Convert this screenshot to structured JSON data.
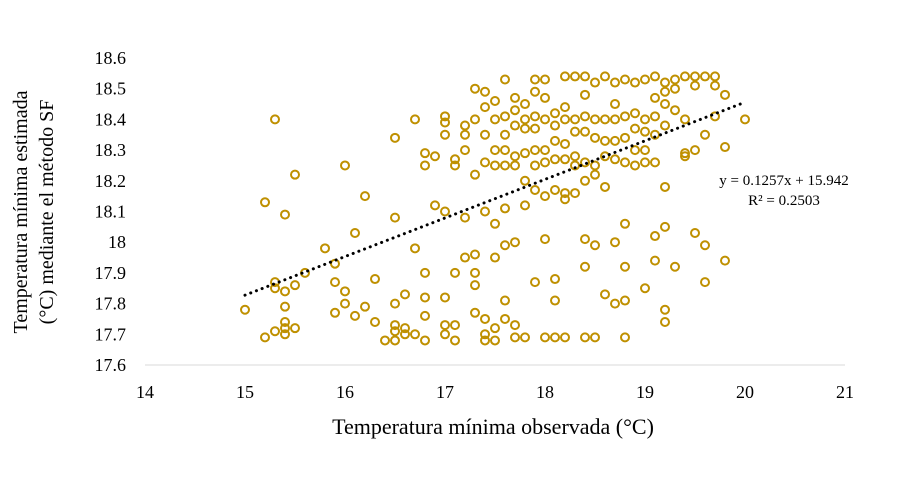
{
  "chart_data": {
    "type": "scatter",
    "title": "",
    "xlabel": "Temperatura mínima observada (°C)",
    "ylabel_lines": [
      "Temperatura mínima estimada",
      "(°C) mediante el método SF"
    ],
    "xlim": [
      14,
      21
    ],
    "ylim": [
      17.6,
      18.6
    ],
    "x_ticks": [
      "14",
      "15",
      "16",
      "17",
      "18",
      "19",
      "20",
      "21"
    ],
    "y_ticks": [
      "17.6",
      "17.7",
      "17.8",
      "17.9",
      "18",
      "18.1",
      "18.2",
      "18.3",
      "18.4",
      "18.5",
      "18.6"
    ],
    "grid": false,
    "marker_color": "#BF9000",
    "trendline": {
      "slope": 0.1257,
      "intercept": 15.942,
      "x_range": [
        15,
        20
      ],
      "style": "dotted",
      "color": "#000000"
    },
    "annotations": {
      "equation": "y = 0.1257x + 15.942",
      "r2": "R² = 0.2503"
    },
    "points": [
      [
        15.0,
        17.78
      ],
      [
        15.2,
        18.13
      ],
      [
        15.2,
        17.69
      ],
      [
        15.3,
        18.4
      ],
      [
        15.3,
        17.87
      ],
      [
        15.3,
        17.85
      ],
      [
        15.3,
        17.71
      ],
      [
        15.4,
        18.09
      ],
      [
        15.4,
        17.84
      ],
      [
        15.4,
        17.79
      ],
      [
        15.4,
        17.74
      ],
      [
        15.4,
        17.72
      ],
      [
        15.4,
        17.7
      ],
      [
        15.5,
        18.22
      ],
      [
        15.5,
        17.86
      ],
      [
        15.5,
        17.72
      ],
      [
        15.6,
        17.9
      ],
      [
        15.8,
        17.98
      ],
      [
        15.9,
        17.77
      ],
      [
        15.9,
        17.93
      ],
      [
        15.9,
        17.87
      ],
      [
        16.0,
        18.25
      ],
      [
        16.0,
        17.84
      ],
      [
        16.0,
        17.8
      ],
      [
        16.1,
        18.03
      ],
      [
        16.1,
        17.76
      ],
      [
        16.2,
        18.15
      ],
      [
        16.2,
        17.79
      ],
      [
        16.3,
        17.88
      ],
      [
        16.3,
        17.74
      ],
      [
        16.4,
        17.68
      ],
      [
        16.5,
        18.34
      ],
      [
        16.5,
        18.08
      ],
      [
        16.5,
        17.8
      ],
      [
        16.5,
        17.73
      ],
      [
        16.5,
        17.71
      ],
      [
        16.5,
        17.68
      ],
      [
        16.6,
        17.83
      ],
      [
        16.6,
        17.72
      ],
      [
        16.6,
        17.7
      ],
      [
        16.7,
        18.4
      ],
      [
        16.7,
        17.98
      ],
      [
        16.7,
        17.7
      ],
      [
        16.8,
        18.29
      ],
      [
        16.8,
        18.25
      ],
      [
        16.8,
        17.9
      ],
      [
        16.8,
        17.82
      ],
      [
        16.8,
        17.76
      ],
      [
        16.8,
        17.68
      ],
      [
        16.9,
        18.12
      ],
      [
        16.9,
        18.28
      ],
      [
        17.0,
        18.41
      ],
      [
        17.0,
        18.39
      ],
      [
        17.0,
        18.35
      ],
      [
        17.0,
        18.1
      ],
      [
        17.0,
        17.82
      ],
      [
        17.0,
        17.73
      ],
      [
        17.0,
        17.7
      ],
      [
        17.1,
        18.27
      ],
      [
        17.1,
        18.25
      ],
      [
        17.1,
        17.9
      ],
      [
        17.1,
        17.73
      ],
      [
        17.1,
        17.68
      ],
      [
        17.2,
        18.38
      ],
      [
        17.2,
        18.35
      ],
      [
        17.2,
        18.3
      ],
      [
        17.2,
        18.08
      ],
      [
        17.2,
        17.95
      ],
      [
        17.3,
        18.5
      ],
      [
        17.3,
        18.4
      ],
      [
        17.3,
        18.22
      ],
      [
        17.3,
        17.96
      ],
      [
        17.3,
        17.9
      ],
      [
        17.3,
        17.86
      ],
      [
        17.3,
        17.77
      ],
      [
        17.4,
        18.49
      ],
      [
        17.4,
        18.44
      ],
      [
        17.4,
        18.35
      ],
      [
        17.4,
        18.26
      ],
      [
        17.4,
        18.1
      ],
      [
        17.4,
        17.75
      ],
      [
        17.4,
        17.7
      ],
      [
        17.4,
        17.68
      ],
      [
        17.5,
        18.46
      ],
      [
        17.5,
        18.4
      ],
      [
        17.5,
        18.3
      ],
      [
        17.5,
        18.25
      ],
      [
        17.5,
        18.06
      ],
      [
        17.5,
        17.95
      ],
      [
        17.5,
        17.72
      ],
      [
        17.5,
        17.68
      ],
      [
        17.6,
        18.53
      ],
      [
        17.6,
        18.41
      ],
      [
        17.6,
        18.35
      ],
      [
        17.6,
        18.3
      ],
      [
        17.6,
        18.25
      ],
      [
        17.6,
        18.11
      ],
      [
        17.6,
        17.99
      ],
      [
        17.6,
        17.81
      ],
      [
        17.6,
        17.75
      ],
      [
        17.7,
        18.47
      ],
      [
        17.7,
        18.43
      ],
      [
        17.7,
        18.38
      ],
      [
        17.7,
        18.28
      ],
      [
        17.7,
        18.25
      ],
      [
        17.7,
        18.0
      ],
      [
        17.7,
        17.73
      ],
      [
        17.7,
        17.69
      ],
      [
        17.8,
        18.45
      ],
      [
        17.8,
        18.4
      ],
      [
        17.8,
        18.37
      ],
      [
        17.8,
        18.29
      ],
      [
        17.8,
        18.2
      ],
      [
        17.8,
        18.12
      ],
      [
        17.8,
        17.69
      ],
      [
        17.9,
        18.53
      ],
      [
        17.9,
        18.49
      ],
      [
        17.9,
        18.41
      ],
      [
        17.9,
        18.37
      ],
      [
        17.9,
        18.3
      ],
      [
        17.9,
        18.25
      ],
      [
        17.9,
        18.17
      ],
      [
        17.9,
        17.87
      ],
      [
        18.0,
        18.53
      ],
      [
        18.0,
        18.47
      ],
      [
        18.0,
        18.4
      ],
      [
        18.0,
        18.3
      ],
      [
        18.0,
        18.26
      ],
      [
        18.0,
        18.15
      ],
      [
        18.0,
        18.01
      ],
      [
        18.0,
        17.69
      ],
      [
        18.1,
        18.42
      ],
      [
        18.1,
        18.38
      ],
      [
        18.1,
        18.33
      ],
      [
        18.1,
        18.27
      ],
      [
        18.1,
        18.17
      ],
      [
        18.1,
        17.88
      ],
      [
        18.1,
        17.81
      ],
      [
        18.1,
        17.69
      ],
      [
        18.2,
        18.54
      ],
      [
        18.2,
        18.44
      ],
      [
        18.2,
        18.4
      ],
      [
        18.2,
        18.32
      ],
      [
        18.2,
        18.27
      ],
      [
        18.2,
        18.16
      ],
      [
        18.2,
        18.14
      ],
      [
        18.2,
        17.69
      ],
      [
        18.3,
        18.54
      ],
      [
        18.3,
        18.4
      ],
      [
        18.3,
        18.36
      ],
      [
        18.3,
        18.28
      ],
      [
        18.3,
        18.25
      ],
      [
        18.3,
        18.16
      ],
      [
        18.4,
        18.54
      ],
      [
        18.4,
        18.48
      ],
      [
        18.4,
        18.41
      ],
      [
        18.4,
        18.36
      ],
      [
        18.4,
        18.26
      ],
      [
        18.4,
        18.2
      ],
      [
        18.4,
        18.01
      ],
      [
        18.4,
        17.92
      ],
      [
        18.4,
        17.69
      ],
      [
        18.5,
        18.52
      ],
      [
        18.5,
        18.4
      ],
      [
        18.5,
        18.34
      ],
      [
        18.5,
        18.25
      ],
      [
        18.5,
        18.22
      ],
      [
        18.5,
        17.99
      ],
      [
        18.5,
        17.69
      ],
      [
        18.6,
        18.54
      ],
      [
        18.6,
        18.4
      ],
      [
        18.6,
        18.33
      ],
      [
        18.6,
        18.28
      ],
      [
        18.6,
        18.18
      ],
      [
        18.6,
        17.83
      ],
      [
        18.7,
        18.52
      ],
      [
        18.7,
        18.45
      ],
      [
        18.7,
        18.4
      ],
      [
        18.7,
        18.33
      ],
      [
        18.7,
        18.27
      ],
      [
        18.7,
        18.0
      ],
      [
        18.7,
        17.8
      ],
      [
        18.8,
        18.53
      ],
      [
        18.8,
        18.41
      ],
      [
        18.8,
        18.34
      ],
      [
        18.8,
        18.26
      ],
      [
        18.8,
        18.06
      ],
      [
        18.8,
        17.92
      ],
      [
        18.8,
        17.81
      ],
      [
        18.8,
        17.69
      ],
      [
        18.9,
        18.52
      ],
      [
        18.9,
        18.42
      ],
      [
        18.9,
        18.37
      ],
      [
        18.9,
        18.3
      ],
      [
        18.9,
        18.25
      ],
      [
        19.0,
        18.53
      ],
      [
        19.0,
        18.4
      ],
      [
        19.0,
        18.36
      ],
      [
        19.0,
        18.3
      ],
      [
        19.0,
        18.26
      ],
      [
        19.0,
        17.85
      ],
      [
        19.1,
        18.54
      ],
      [
        19.1,
        18.47
      ],
      [
        19.1,
        18.41
      ],
      [
        19.1,
        18.35
      ],
      [
        19.1,
        18.26
      ],
      [
        19.1,
        18.02
      ],
      [
        19.1,
        17.94
      ],
      [
        19.2,
        18.52
      ],
      [
        19.2,
        18.49
      ],
      [
        19.2,
        18.45
      ],
      [
        19.2,
        18.38
      ],
      [
        19.2,
        18.18
      ],
      [
        19.2,
        18.05
      ],
      [
        19.2,
        17.78
      ],
      [
        19.2,
        17.74
      ],
      [
        19.3,
        18.53
      ],
      [
        19.3,
        18.5
      ],
      [
        19.3,
        18.43
      ],
      [
        19.3,
        17.92
      ],
      [
        19.4,
        18.54
      ],
      [
        19.4,
        18.4
      ],
      [
        19.4,
        18.29
      ],
      [
        19.4,
        18.28
      ],
      [
        19.5,
        18.54
      ],
      [
        19.5,
        18.51
      ],
      [
        19.5,
        18.3
      ],
      [
        19.5,
        18.03
      ],
      [
        19.6,
        18.54
      ],
      [
        19.6,
        18.35
      ],
      [
        19.6,
        17.99
      ],
      [
        19.6,
        17.87
      ],
      [
        19.7,
        18.54
      ],
      [
        19.7,
        18.51
      ],
      [
        19.7,
        18.41
      ],
      [
        19.8,
        18.48
      ],
      [
        19.8,
        18.31
      ],
      [
        19.8,
        17.94
      ],
      [
        20.0,
        18.4
      ]
    ]
  }
}
